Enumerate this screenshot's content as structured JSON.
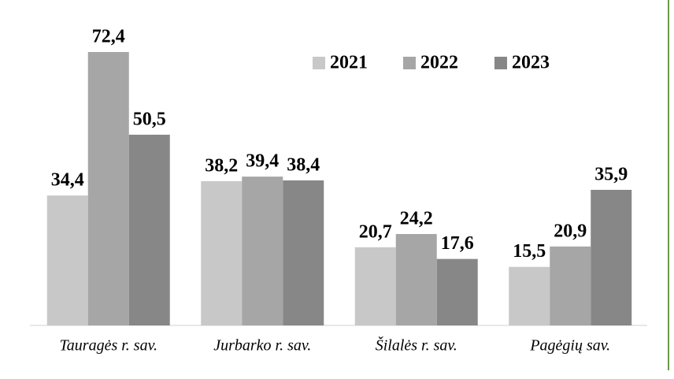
{
  "chart_data": {
    "type": "bar",
    "categories": [
      "Tauragės r. sav.",
      "Jurbarko r. sav.",
      "Šilalės r. sav.",
      "Pagėgių sav."
    ],
    "series": [
      {
        "name": "2021",
        "color": "#c8c8c8",
        "values": [
          34.4,
          38.2,
          20.7,
          15.5
        ],
        "value_labels": [
          "34,4",
          "38,2",
          "20,7",
          "15,5"
        ]
      },
      {
        "name": "2022",
        "color": "#a6a6a6",
        "values": [
          72.4,
          39.4,
          24.2,
          20.9
        ],
        "value_labels": [
          "72,4",
          "39,4",
          "24,2",
          "20,9"
        ]
      },
      {
        "name": "2023",
        "color": "#878787",
        "values": [
          50.5,
          38.4,
          17.6,
          35.9
        ],
        "value_labels": [
          "50,5",
          "38,4",
          "17,6",
          "35,9"
        ]
      }
    ],
    "legend": "top-right"
  }
}
